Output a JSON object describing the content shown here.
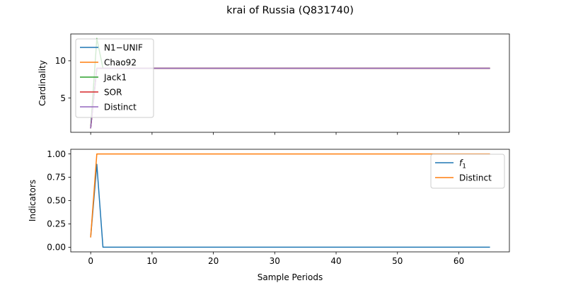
{
  "figure": {
    "title": "krai of Russia (Q831740)"
  },
  "chart_data": [
    {
      "type": "line",
      "ylabel": "Cardinality",
      "xlabel": "",
      "xlim": [
        -3.25,
        68.25
      ],
      "ylim": [
        0.4,
        13.6
      ],
      "xticks": [
        0,
        10,
        20,
        30,
        40,
        50,
        60
      ],
      "yticks": [
        5,
        10
      ],
      "xticklabels": [],
      "grid": false,
      "legend_position": "upper-left",
      "series": [
        {
          "name": "N1−UNIF",
          "color": "#1f77b4",
          "x": [
            0,
            1,
            2,
            65
          ],
          "y": [
            1,
            9,
            9,
            9
          ]
        },
        {
          "name": "Chao92",
          "color": "#ff7f0e",
          "x": [
            0,
            1,
            2,
            65
          ],
          "y": [
            1,
            9,
            9,
            9
          ]
        },
        {
          "name": "Jack1",
          "color": "#2ca02c",
          "x": [
            0,
            1,
            2,
            65
          ],
          "y": [
            1,
            13,
            9,
            9
          ]
        },
        {
          "name": "SOR",
          "color": "#d62728",
          "x": [
            0,
            1,
            2,
            65
          ],
          "y": [
            1,
            9,
            9,
            9
          ]
        },
        {
          "name": "Distinct",
          "color": "#9467bd",
          "x": [
            0,
            1,
            2,
            65
          ],
          "y": [
            1,
            9,
            9,
            9
          ]
        }
      ]
    },
    {
      "type": "line",
      "ylabel": "Indicators",
      "xlabel": "Sample Periods",
      "xlim": [
        -3.25,
        68.25
      ],
      "ylim": [
        -0.05,
        1.05
      ],
      "xticks": [
        0,
        10,
        20,
        30,
        40,
        50,
        60
      ],
      "yticks": [
        0.0,
        0.25,
        0.5,
        0.75,
        1.0
      ],
      "xticklabels": [
        "0",
        "10",
        "20",
        "30",
        "40",
        "50",
        "60"
      ],
      "yticklabels": [
        "0.00",
        "0.25",
        "0.50",
        "0.75",
        "1.00"
      ],
      "grid": false,
      "legend_position": "upper-right",
      "series": [
        {
          "name": "f",
          "name_subscript": "1",
          "color": "#1f77b4",
          "x": [
            0,
            1,
            2,
            65
          ],
          "y": [
            0.111,
            0.889,
            0.0,
            0.0
          ]
        },
        {
          "name": "Distinct",
          "color": "#ff7f0e",
          "x": [
            0,
            1,
            2,
            65
          ],
          "y": [
            0.111,
            1.0,
            1.0,
            1.0
          ]
        }
      ]
    }
  ]
}
